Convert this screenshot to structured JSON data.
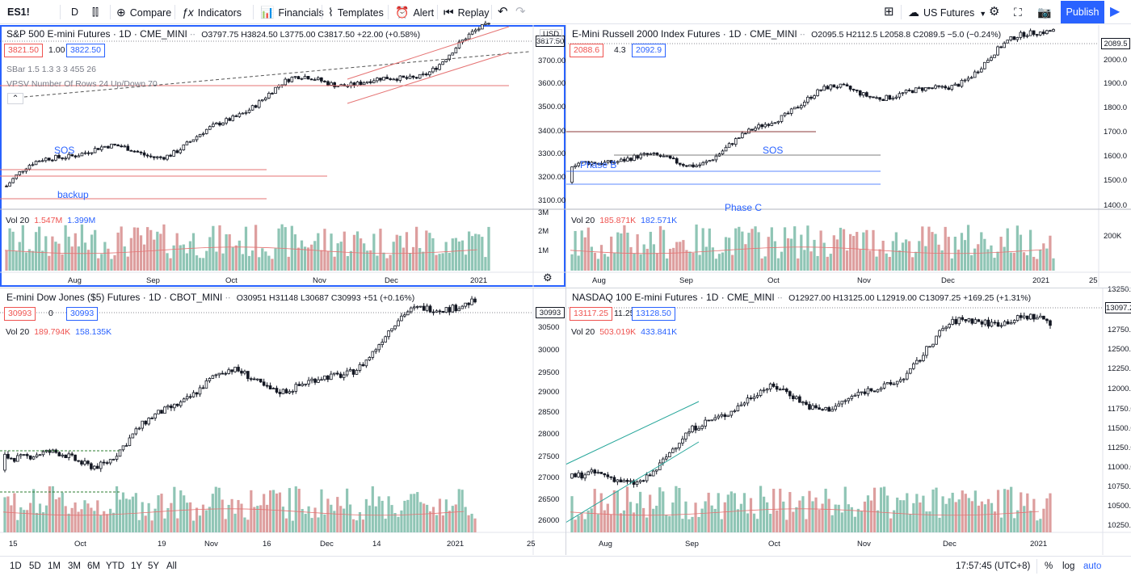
{
  "toolbar": {
    "symbol": "ES1!",
    "interval": "D",
    "compare": "Compare",
    "indicators": "Indicators",
    "financials": "Financials",
    "templates": "Templates",
    "alert": "Alert",
    "replay": "Replay",
    "exchange": "US Futures",
    "publish": "Publish"
  },
  "bottom": {
    "ranges": [
      "1D",
      "5D",
      "1M",
      "3M",
      "6M",
      "YTD",
      "1Y",
      "5Y",
      "All"
    ],
    "time": "17:57:45 (UTC+8)",
    "percent": "%",
    "log": "log",
    "auto": "auto"
  },
  "colors": {
    "up": "#26a69a",
    "down": "#ef5350",
    "accent": "#2962ff",
    "vol_up": "#8fc5b5",
    "vol_down": "#dd9e9e"
  },
  "panes": [
    {
      "title": "S&P 500 E-mini Futures · 1D · CME_MINI",
      "ohlc": "O3797.75 H3824.50 L3775.00 C3817.50 +22.00 (+0.58%)",
      "bid": "3821.50",
      "spread": "1.00",
      "ask": "3822.50",
      "last": "3817.50",
      "currency": "USD",
      "indicator1": "SBar 1.5 1.3 3 3 455 26",
      "indicator2": "VPSV Number Of Rows 24 Up/Down 70",
      "vol": "Vol 20",
      "vol_a": "1.547M",
      "vol_b": "1.399M",
      "annotations": [
        "SOS",
        "backup"
      ],
      "y_ticks": [
        "3700.00",
        "3600.00",
        "3500.00",
        "3400.00",
        "3300.00",
        "3200.00",
        "3100.00"
      ],
      "vol_ticks": [
        "3M",
        "2M",
        "1M"
      ],
      "x_ticks": [
        "Aug",
        "Sep",
        "Oct",
        "Nov",
        "Dec",
        "2021"
      ]
    },
    {
      "title": "E-Mini Russell 2000 Index Futures · 1D · CME_MINI",
      "ohlc": "O2095.5 H2112.5 L2058.8 C2089.5 −5.0 (−0.24%)",
      "bid": "2088.6",
      "spread": "4.3",
      "ask": "2092.9",
      "last": "2089.5",
      "vol": "Vol 20",
      "vol_a": "185.871K",
      "vol_b": "182.571K",
      "annotations": [
        "Phase B",
        "SOS",
        "Phase C"
      ],
      "y_ticks": [
        "2000.0",
        "1900.0",
        "1800.0",
        "1700.0",
        "1600.0",
        "1500.0",
        "1400.0"
      ],
      "vol_ticks": [
        "200K"
      ],
      "x_ticks": [
        "Aug",
        "Sep",
        "Oct",
        "Nov",
        "Dec",
        "2021",
        "25"
      ]
    },
    {
      "title": "E-mini Dow Jones ($5) Futures · 1D · CBOT_MINI",
      "ohlc": "O30951 H31148 L30687 C30993 +51 (+0.16%)",
      "bid": "30993",
      "spread": "0",
      "ask": "30993",
      "last": "30993",
      "vol": "Vol 20",
      "vol_a": "189.794K",
      "vol_b": "158.135K",
      "y_ticks": [
        "30500",
        "30000",
        "29500",
        "29000",
        "28500",
        "28000",
        "27500",
        "27000",
        "26500",
        "26000"
      ],
      "x_ticks": [
        "15",
        "Oct",
        "19",
        "Nov",
        "16",
        "Dec",
        "14",
        "2021",
        "25"
      ]
    },
    {
      "title": "NASDAQ 100 E-mini Futures · 1D · CME_MINI",
      "ohlc": "O12927.00 H13125.00 L12919.00 C13097.25 +169.25 (+1.31%)",
      "bid": "13117.25",
      "spread": "11.25",
      "ask": "13128.50",
      "last": "13097.25",
      "vol": "Vol 20",
      "vol_a": "503.019K",
      "vol_b": "433.841K",
      "y_ticks": [
        "13250.00",
        "12750.00",
        "12500.00",
        "12250.00",
        "12000.00",
        "11750.00",
        "11500.00",
        "11250.00",
        "11000.00",
        "10750.00",
        "10500.00",
        "10250.00"
      ],
      "x_ticks": [
        "Aug",
        "Sep",
        "Oct",
        "Nov",
        "Dec",
        "2021"
      ]
    }
  ]
}
